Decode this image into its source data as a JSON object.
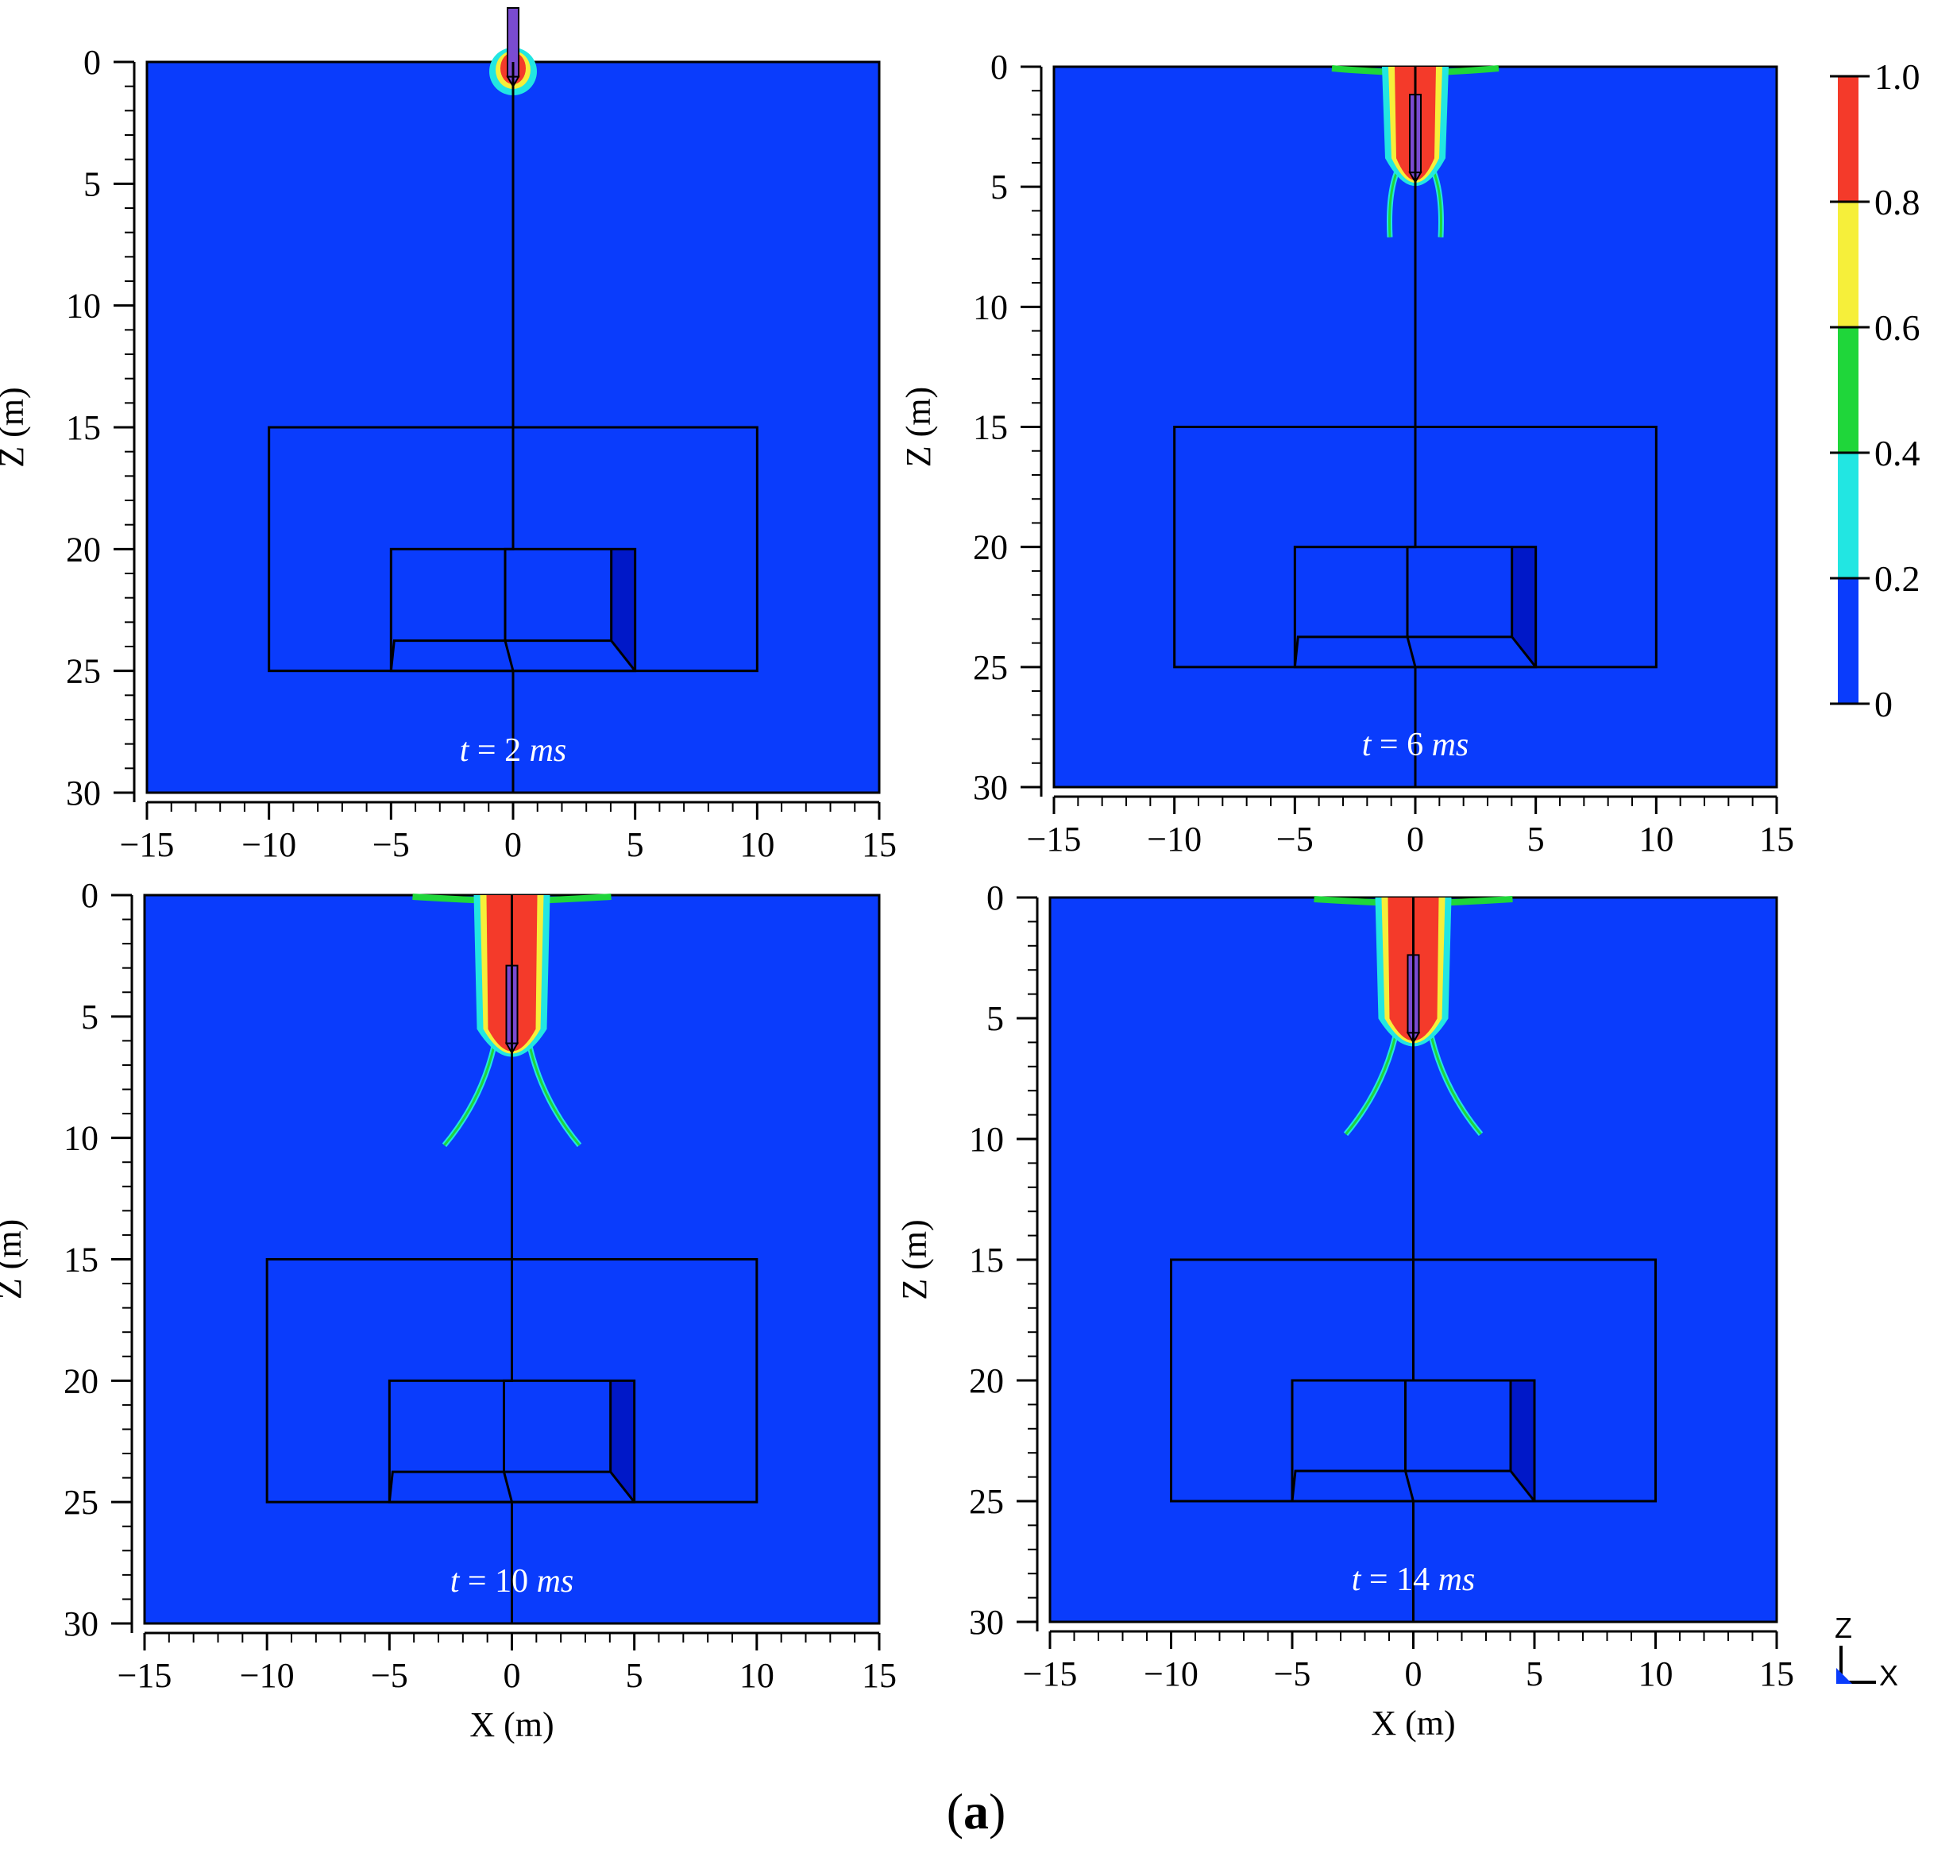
{
  "figure": {
    "caption_open": "(",
    "caption_letter": "a",
    "caption_close": ")"
  },
  "panels": [
    {
      "time_var": "t",
      "time_eq": " = ",
      "time_value": "2",
      "time_unit": "ms",
      "ylabel": "Z (m)",
      "xlabel": "",
      "projectile_tip_depth_m": 1.0,
      "damage_extent": "small"
    },
    {
      "time_var": "t",
      "time_eq": " = ",
      "time_value": "6",
      "time_unit": "ms",
      "ylabel": "Z (m)",
      "xlabel": "",
      "projectile_tip_depth_m": 4.8,
      "damage_extent": "medium"
    },
    {
      "time_var": "t",
      "time_eq": " = ",
      "time_value": "10",
      "time_unit": "ms",
      "ylabel": "Z (m)",
      "xlabel": "X (m)",
      "projectile_tip_depth_m": 6.5,
      "damage_extent": "large"
    },
    {
      "time_var": "t",
      "time_eq": " = ",
      "time_value": "14",
      "time_unit": "ms",
      "ylabel": "Z (m)",
      "xlabel": "X (m)",
      "projectile_tip_depth_m": 6.0,
      "damage_extent": "large"
    }
  ],
  "axes": {
    "x_ticks": [
      "−15",
      "−10",
      "−5",
      "0",
      "5",
      "10",
      "15"
    ],
    "z_ticks": [
      "0",
      "5",
      "10",
      "15",
      "20",
      "25",
      "30"
    ],
    "x_range_m": [
      -15,
      15
    ],
    "z_range_m": [
      0,
      30
    ]
  },
  "structure": {
    "outer_box_m": {
      "x": [
        -10,
        10
      ],
      "z": [
        15,
        25
      ]
    },
    "inner_box_m": {
      "x": [
        -5,
        5
      ],
      "z": [
        20,
        25
      ]
    }
  },
  "colorbar": {
    "labels": [
      "1.0",
      "0.8",
      "0.6",
      "0.4",
      "0.2",
      "0"
    ],
    "colors": [
      "#f43a2a",
      "#f6ef3a",
      "#1fd63a",
      "#22e6e2",
      "#0a3cfc"
    ]
  },
  "triad": {
    "z_label": "Z",
    "x_label": "X"
  },
  "colors": {
    "soil": "#0a3cfc",
    "damage_red": "#f43a2a",
    "damage_yellow": "#f6ef3a",
    "damage_green": "#1fd63a",
    "damage_cyan": "#22e6e2",
    "shadow_face": "#0018c8",
    "time_label": "#ffffff"
  }
}
